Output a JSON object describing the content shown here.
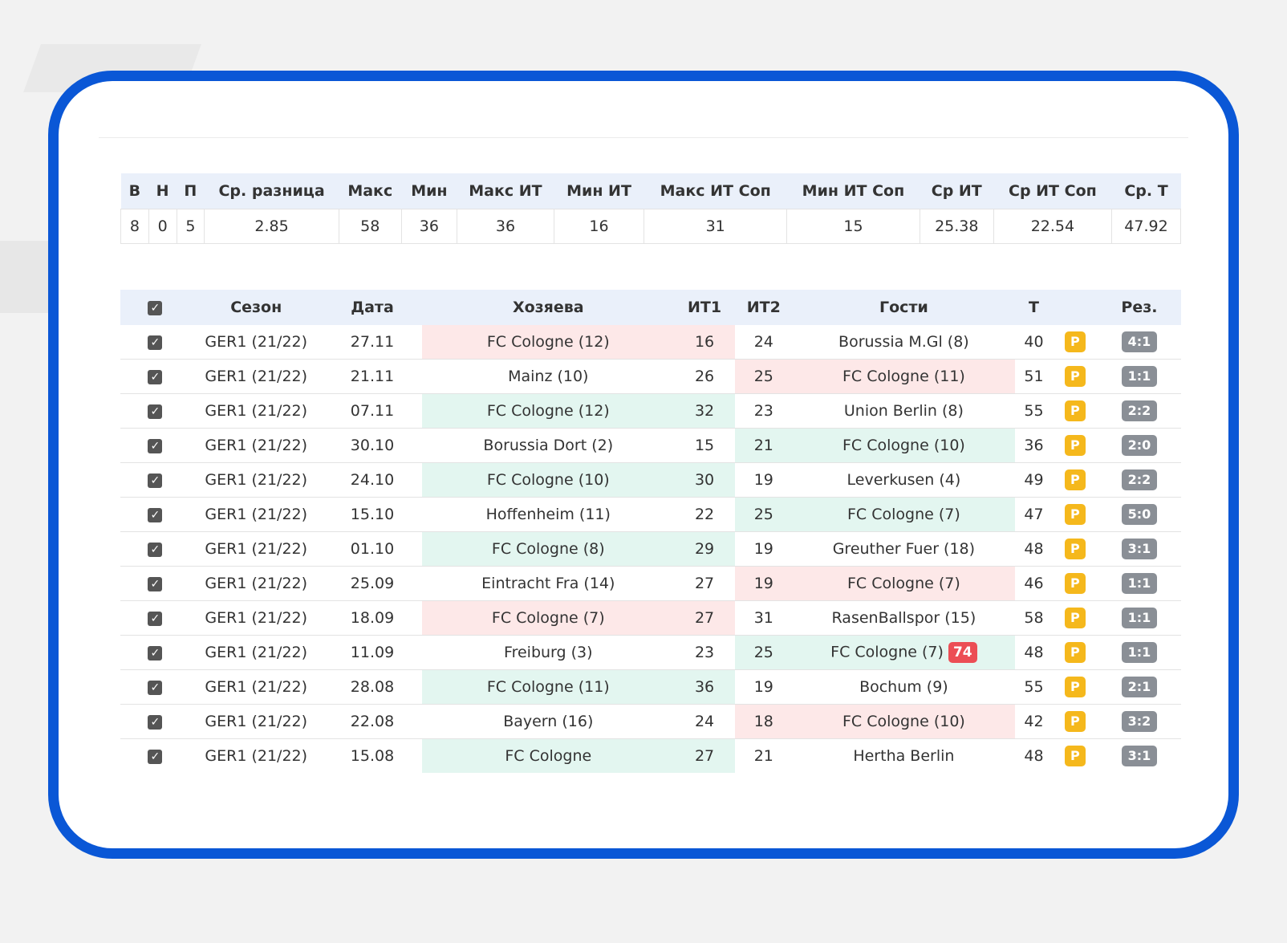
{
  "summary": {
    "headers": [
      "В",
      "Н",
      "П",
      "Ср. разница",
      "Макс",
      "Мин",
      "Макс ИТ",
      "Мин ИТ",
      "Макс ИТ Соп",
      "Мин ИТ Соп",
      "Ср ИТ",
      "Ср ИТ Соп",
      "Ср. Т"
    ],
    "values": [
      "8",
      "0",
      "5",
      "2.85",
      "58",
      "36",
      "36",
      "16",
      "31",
      "15",
      "25.38",
      "22.54",
      "47.92"
    ]
  },
  "matches": {
    "headers": {
      "check": "☑",
      "season": "Сезон",
      "date": "Дата",
      "home": "Хозяева",
      "it1": "ИТ1",
      "it2": "ИТ2",
      "away": "Гости",
      "total": "Т",
      "p": "",
      "result": "Рез."
    },
    "check_icon": "checkbox-checked-icon",
    "colors": {
      "red": "#fde8e8",
      "green": "#e3f6f0",
      "p_badge": "#f5b81c",
      "result_badge": "#8a8f96",
      "minute_badge": "#ec4e55"
    },
    "rows": [
      {
        "season": "GER1 (21/22)",
        "date": "27.11",
        "home": "FC Cologne (12)",
        "it1": "16",
        "it2": "24",
        "away": "Borussia M.Gl (8)",
        "total": "40",
        "p": "P",
        "result": "4:1",
        "highlight": "home-red"
      },
      {
        "season": "GER1 (21/22)",
        "date": "21.11",
        "home": "Mainz (10)",
        "it1": "26",
        "it2": "25",
        "away": "FC Cologne (11)",
        "total": "51",
        "p": "P",
        "result": "1:1",
        "highlight": "away-red"
      },
      {
        "season": "GER1 (21/22)",
        "date": "07.11",
        "home": "FC Cologne (12)",
        "it1": "32",
        "it2": "23",
        "away": "Union Berlin (8)",
        "total": "55",
        "p": "P",
        "result": "2:2",
        "highlight": "home-green"
      },
      {
        "season": "GER1 (21/22)",
        "date": "30.10",
        "home": "Borussia Dort (2)",
        "it1": "15",
        "it2": "21",
        "away": "FC Cologne (10)",
        "total": "36",
        "p": "P",
        "result": "2:0",
        "highlight": "away-green"
      },
      {
        "season": "GER1 (21/22)",
        "date": "24.10",
        "home": "FC Cologne (10)",
        "it1": "30",
        "it2": "19",
        "away": "Leverkusen (4)",
        "total": "49",
        "p": "P",
        "result": "2:2",
        "highlight": "home-green"
      },
      {
        "season": "GER1 (21/22)",
        "date": "15.10",
        "home": "Hoffenheim (11)",
        "it1": "22",
        "it2": "25",
        "away": "FC Cologne (7)",
        "total": "47",
        "p": "P",
        "result": "5:0",
        "highlight": "away-green"
      },
      {
        "season": "GER1 (21/22)",
        "date": "01.10",
        "home": "FC Cologne (8)",
        "it1": "29",
        "it2": "19",
        "away": "Greuther Fuer (18)",
        "total": "48",
        "p": "P",
        "result": "3:1",
        "highlight": "home-green"
      },
      {
        "season": "GER1 (21/22)",
        "date": "25.09",
        "home": "Eintracht Fra (14)",
        "it1": "27",
        "it2": "19",
        "away": "FC Cologne (7)",
        "total": "46",
        "p": "P",
        "result": "1:1",
        "highlight": "away-red"
      },
      {
        "season": "GER1 (21/22)",
        "date": "18.09",
        "home": "FC Cologne (7)",
        "it1": "27",
        "it2": "31",
        "away": "RasenBallspor (15)",
        "total": "58",
        "p": "P",
        "result": "1:1",
        "highlight": "home-red"
      },
      {
        "season": "GER1 (21/22)",
        "date": "11.09",
        "home": "Freiburg (3)",
        "it1": "23",
        "it2": "25",
        "away": "FC Cologne (7)",
        "away_badge": "74",
        "total": "48",
        "p": "P",
        "result": "1:1",
        "highlight": "away-green"
      },
      {
        "season": "GER1 (21/22)",
        "date": "28.08",
        "home": "FC Cologne (11)",
        "it1": "36",
        "it2": "19",
        "away": "Bochum (9)",
        "total": "55",
        "p": "P",
        "result": "2:1",
        "highlight": "home-green"
      },
      {
        "season": "GER1 (21/22)",
        "date": "22.08",
        "home": "Bayern (16)",
        "it1": "24",
        "it2": "18",
        "away": "FC Cologne (10)",
        "total": "42",
        "p": "P",
        "result": "3:2",
        "highlight": "away-red"
      },
      {
        "season": "GER1 (21/22)",
        "date": "15.08",
        "home": "FC Cologne",
        "it1": "27",
        "it2": "21",
        "away": "Hertha Berlin",
        "total": "48",
        "p": "P",
        "result": "3:1",
        "highlight": "home-green"
      }
    ]
  }
}
